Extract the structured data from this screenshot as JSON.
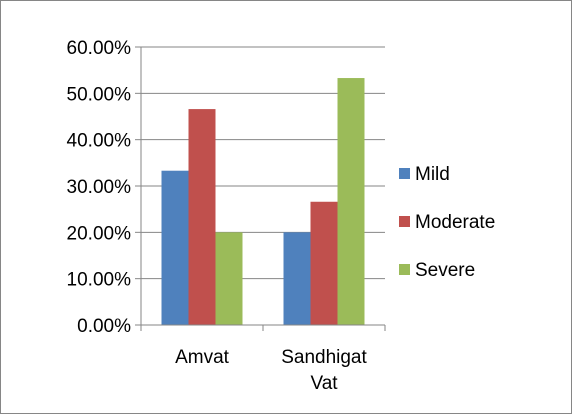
{
  "chart_data": {
    "type": "bar",
    "categories": [
      [
        "Amvat"
      ],
      [
        "Sandhigat",
        "Vat"
      ]
    ],
    "series": [
      {
        "name": "Mild",
        "values": [
          0.333,
          0.2
        ],
        "color": "#4F81BD"
      },
      {
        "name": "Moderate",
        "values": [
          0.466,
          0.266
        ],
        "color": "#C0504D"
      },
      {
        "name": "Severe",
        "values": [
          0.2,
          0.533
        ],
        "color": "#9BBB59"
      }
    ],
    "y_ticks": [
      "0.00%",
      "10.00%",
      "20.00%",
      "30.00%",
      "40.00%",
      "50.00%",
      "60.00%"
    ],
    "ylim": [
      0,
      0.6
    ],
    "grid": true,
    "legend_position": "right",
    "axis_color": "#868686"
  }
}
